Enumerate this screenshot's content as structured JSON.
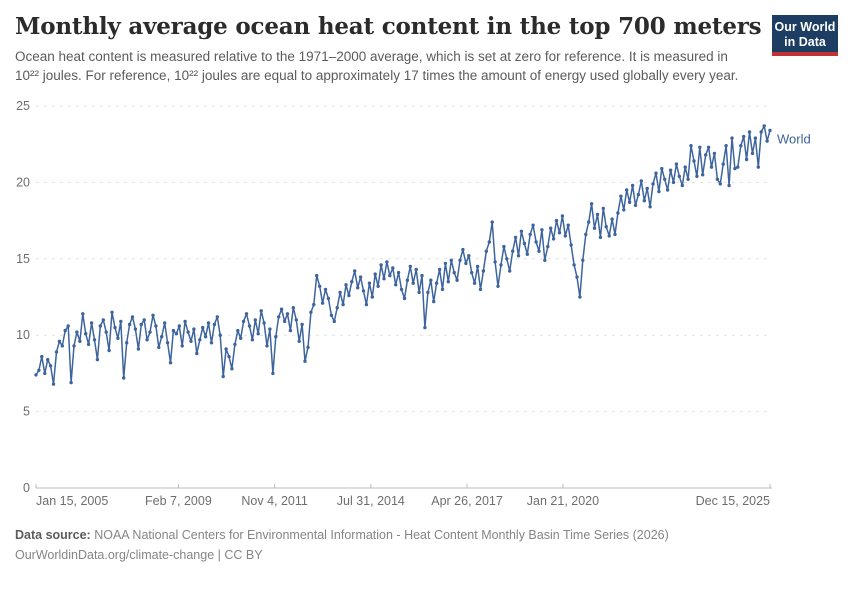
{
  "header": {
    "title": "Monthly average ocean heat content in the top 700 meters",
    "subtitle": "Ocean heat content is measured relative to the 1971–2000 average, which is set at zero for reference. It is measured in 10²² joules. For reference, 10²² joules are equal to approximately 17 times the amount of energy used globally every year.",
    "logo": {
      "line1": "Our World",
      "line2": "in Data"
    }
  },
  "colors": {
    "logo_bg": "#1d3d63",
    "logo_stripe": "#c23335",
    "line": "#3d649d",
    "grid": "#e0e0e0",
    "axis": "#bcbcbc",
    "tick_label": "#6e6e6e"
  },
  "chart_data": {
    "type": "line",
    "title": "Monthly average ocean heat content in the top 700 meters",
    "unit": "10²² joules",
    "frequency": "monthly",
    "x_axis": {
      "start": "Jan 2005",
      "end": "Dec 2025",
      "ticks": [
        {
          "label": "Jan 15, 2005",
          "month_index": 0
        },
        {
          "label": "Feb 7, 2009",
          "month_index": 48.7
        },
        {
          "label": "Nov 4, 2011",
          "month_index": 81.6
        },
        {
          "label": "Jul 31, 2014",
          "month_index": 114.5
        },
        {
          "label": "Apr 26, 2017",
          "month_index": 147.4
        },
        {
          "label": "Jan 21, 2020",
          "month_index": 180.2
        },
        {
          "label": "Dec 15, 2025",
          "month_index": 251
        }
      ]
    },
    "y_axis": {
      "ticks": [
        0,
        5,
        10,
        15,
        20,
        25
      ],
      "range": [
        0,
        25
      ],
      "grid": "dashed"
    },
    "legend_position": "end-of-line",
    "series": [
      {
        "name": "World",
        "start_month": "2005-01",
        "values": [
          7.4,
          7.7,
          8.6,
          7.5,
          8.4,
          8.0,
          6.8,
          8.9,
          9.6,
          9.3,
          10.3,
          10.6,
          6.9,
          9.3,
          10.2,
          9.6,
          11.4,
          10.1,
          9.4,
          10.8,
          9.7,
          8.4,
          10.6,
          11.0,
          10.2,
          9.0,
          11.5,
          10.5,
          9.8,
          10.9,
          7.2,
          9.5,
          10.7,
          11.2,
          10.4,
          9.1,
          10.7,
          11.0,
          9.7,
          10.2,
          11.3,
          10.6,
          9.2,
          9.9,
          10.8,
          9.5,
          8.2,
          10.3,
          10.1,
          10.6,
          9.3,
          10.9,
          10.2,
          9.6,
          10.4,
          8.8,
          9.7,
          10.5,
          9.9,
          10.8,
          9.5,
          10.7,
          11.2,
          10.0,
          7.3,
          9.1,
          8.6,
          7.8,
          9.4,
          10.3,
          9.8,
          10.9,
          11.4,
          10.6,
          9.7,
          11.0,
          10.1,
          11.6,
          10.8,
          9.3,
          10.4,
          7.5,
          9.9,
          11.2,
          11.7,
          10.9,
          11.4,
          10.3,
          11.8,
          11.0,
          9.6,
          10.7,
          8.3,
          9.2,
          11.5,
          12.0,
          13.9,
          13.2,
          12.1,
          13.0,
          12.4,
          11.3,
          10.9,
          11.8,
          12.8,
          12.0,
          13.3,
          12.6,
          13.5,
          14.2,
          13.1,
          13.8,
          12.9,
          12.0,
          13.4,
          12.5,
          14.0,
          13.2,
          14.6,
          13.7,
          14.8,
          13.9,
          14.4,
          13.3,
          14.1,
          13.0,
          12.4,
          13.6,
          14.5,
          13.4,
          14.3,
          12.8,
          13.9,
          10.5,
          12.8,
          13.6,
          12.2,
          13.4,
          14.3,
          13.0,
          14.7,
          13.5,
          14.9,
          14.1,
          13.6,
          14.9,
          15.6,
          14.7,
          15.2,
          14.1,
          13.4,
          14.5,
          13.0,
          14.2,
          15.5,
          16.1,
          17.4,
          14.8,
          13.2,
          14.6,
          15.8,
          15.0,
          14.2,
          15.5,
          16.4,
          15.2,
          16.8,
          16.0,
          15.3,
          16.6,
          17.2,
          16.1,
          15.5,
          16.9,
          14.9,
          15.8,
          17.0,
          16.3,
          17.5,
          16.7,
          17.8,
          16.5,
          17.2,
          15.9,
          14.6,
          13.8,
          12.5,
          14.9,
          16.6,
          17.4,
          18.6,
          17.0,
          17.9,
          16.4,
          18.3,
          17.1,
          16.5,
          17.6,
          16.6,
          18.0,
          19.1,
          18.2,
          19.5,
          18.7,
          19.8,
          18.5,
          19.2,
          20.1,
          18.8,
          19.6,
          18.4,
          19.9,
          20.6,
          19.4,
          20.9,
          20.2,
          19.5,
          20.8,
          20.0,
          21.2,
          20.4,
          19.8,
          21.0,
          20.2,
          22.4,
          21.4,
          20.4,
          22.3,
          20.5,
          21.8,
          22.3,
          21.0,
          21.9,
          20.2,
          19.9,
          21.2,
          22.4,
          19.8,
          22.9,
          20.9,
          21.0,
          22.4,
          23.0,
          21.5,
          23.3,
          21.9,
          22.9,
          21.0,
          23.3,
          23.7,
          22.7,
          23.4
        ]
      }
    ]
  },
  "footer": {
    "source_label": "Data source:",
    "source_text": " NOAA National Centers for Environmental Information - Heat Content Monthly Basin Time Series (2026)",
    "url": "OurWorldinData.org/climate-change",
    "license": " | CC BY"
  }
}
